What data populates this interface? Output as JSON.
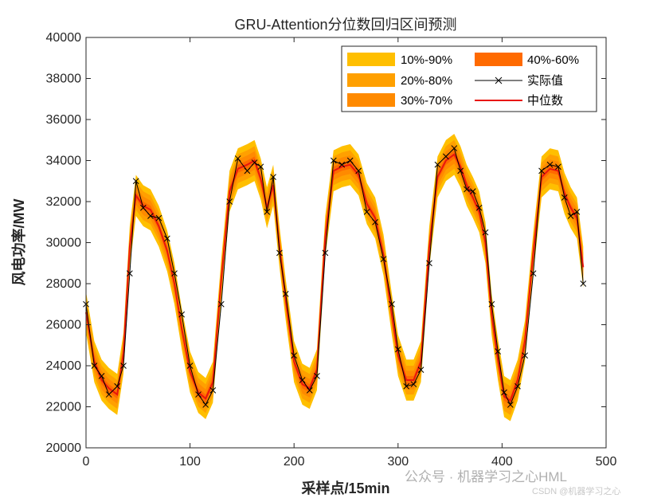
{
  "chart_data": {
    "type": "area",
    "title": "GRU-Attention分位数回归区间预测",
    "xlabel": "采样点/15min",
    "ylabel": "风电功率/MW",
    "xlim": [
      0,
      500
    ],
    "ylim": [
      20000,
      40000
    ],
    "xticks": [
      "0",
      "100",
      "200",
      "300",
      "400",
      "500"
    ],
    "yticks": [
      "20000",
      "22000",
      "24000",
      "26000",
      "28000",
      "30000",
      "32000",
      "34000",
      "36000",
      "38000",
      "40000"
    ],
    "grid": false,
    "legend_position": "top-right",
    "bands": [
      {
        "name": "10%-90%",
        "color": "#ffbf00",
        "half_width": 1000
      },
      {
        "name": "20%-80%",
        "color": "#ffa000",
        "half_width": 700
      },
      {
        "name": "30%-70%",
        "color": "#ff8a00",
        "half_width": 450
      },
      {
        "name": "40%-60%",
        "color": "#ff6a00",
        "half_width": 200
      }
    ],
    "actual": {
      "name": "实际值",
      "color": "#000000",
      "marker": "x",
      "x": [
        0,
        8,
        15,
        22,
        30,
        36,
        42,
        48,
        55,
        62,
        70,
        78,
        85,
        92,
        100,
        108,
        115,
        122,
        130,
        138,
        146,
        155,
        162,
        168,
        174,
        180,
        186,
        192,
        200,
        208,
        215,
        222,
        230,
        238,
        246,
        254,
        262,
        270,
        278,
        286,
        294,
        300,
        308,
        315,
        322,
        330,
        338,
        346,
        354,
        360,
        366,
        372,
        378,
        384,
        390,
        396,
        402,
        408,
        415,
        422,
        430,
        438,
        446,
        454,
        460,
        466,
        472,
        478
      ],
      "y": [
        27000,
        24000,
        23500,
        22600,
        23000,
        24000,
        28500,
        33000,
        31700,
        31300,
        31200,
        30200,
        28500,
        26500,
        24000,
        22600,
        22100,
        22800,
        27000,
        32000,
        34100,
        33500,
        33900,
        33700,
        31500,
        33200,
        29500,
        27500,
        24500,
        23300,
        22800,
        23500,
        29500,
        34000,
        33800,
        34000,
        33500,
        31500,
        31000,
        29200,
        27000,
        24800,
        23000,
        23100,
        23800,
        29000,
        33800,
        34200,
        34600,
        33500,
        32600,
        32500,
        31700,
        30500,
        27000,
        24700,
        22700,
        22100,
        23000,
        24500,
        28500,
        33500,
        33800,
        33700,
        32200,
        31300,
        31500,
        28000
      ]
    },
    "median": {
      "name": "中位数",
      "color": "#e8160c",
      "x": [
        0,
        8,
        15,
        22,
        30,
        36,
        42,
        48,
        55,
        62,
        70,
        78,
        85,
        92,
        100,
        108,
        115,
        122,
        130,
        138,
        146,
        155,
        162,
        168,
        174,
        180,
        186,
        192,
        200,
        208,
        215,
        222,
        230,
        238,
        246,
        254,
        262,
        270,
        278,
        286,
        294,
        300,
        308,
        315,
        322,
        330,
        338,
        346,
        354,
        360,
        366,
        372,
        378,
        384,
        390,
        396,
        402,
        408,
        415,
        422,
        430,
        438,
        446,
        454,
        460,
        466,
        472,
        478
      ],
      "y": [
        26600,
        24200,
        23300,
        22900,
        22600,
        24600,
        29800,
        32300,
        31800,
        31600,
        30800,
        29600,
        28000,
        25800,
        23700,
        22700,
        22400,
        23200,
        28200,
        32500,
        33600,
        33800,
        34000,
        33100,
        31700,
        32800,
        29800,
        27200,
        24200,
        23100,
        22900,
        23800,
        30300,
        33500,
        33700,
        33800,
        33300,
        31900,
        31200,
        29400,
        26500,
        24500,
        23300,
        23300,
        24200,
        29800,
        33200,
        34000,
        34300,
        33700,
        32800,
        32200,
        31500,
        30000,
        26500,
        24300,
        22500,
        22300,
        23300,
        25200,
        29500,
        33200,
        33600,
        33500,
        32400,
        31700,
        31200,
        28800
      ]
    }
  },
  "watermark": {
    "main": "公众号 · 机器学习之心HML",
    "sub": "CSDN @机器学习之心"
  }
}
